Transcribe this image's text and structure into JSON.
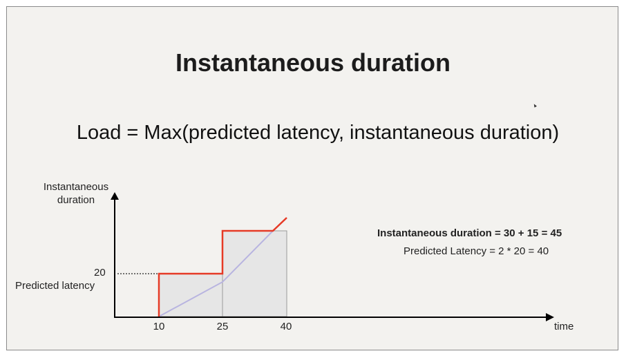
{
  "slide": {
    "title": "Instantaneous duration",
    "formula": "Load = Max(predicted latency, instantaneous duration)"
  },
  "diagram": {
    "y_axis_label_line1": "Instantaneous",
    "y_axis_label_line2": "duration",
    "y_value_label": "20",
    "y_marker_label": "Predicted latency",
    "x_ticks": [
      "10",
      "25",
      "40"
    ],
    "x_axis_label": "time",
    "equation_bold": "Instantaneous duration = 30 + 15 = 45",
    "equation_plain": "Predicted Latency = 2 * 20 = 40",
    "colors": {
      "instantaneous_line": "#e63a26",
      "predicted_line": "#b8b4e0",
      "box_fill": "#e6e6e6",
      "axis": "#000000"
    }
  }
}
